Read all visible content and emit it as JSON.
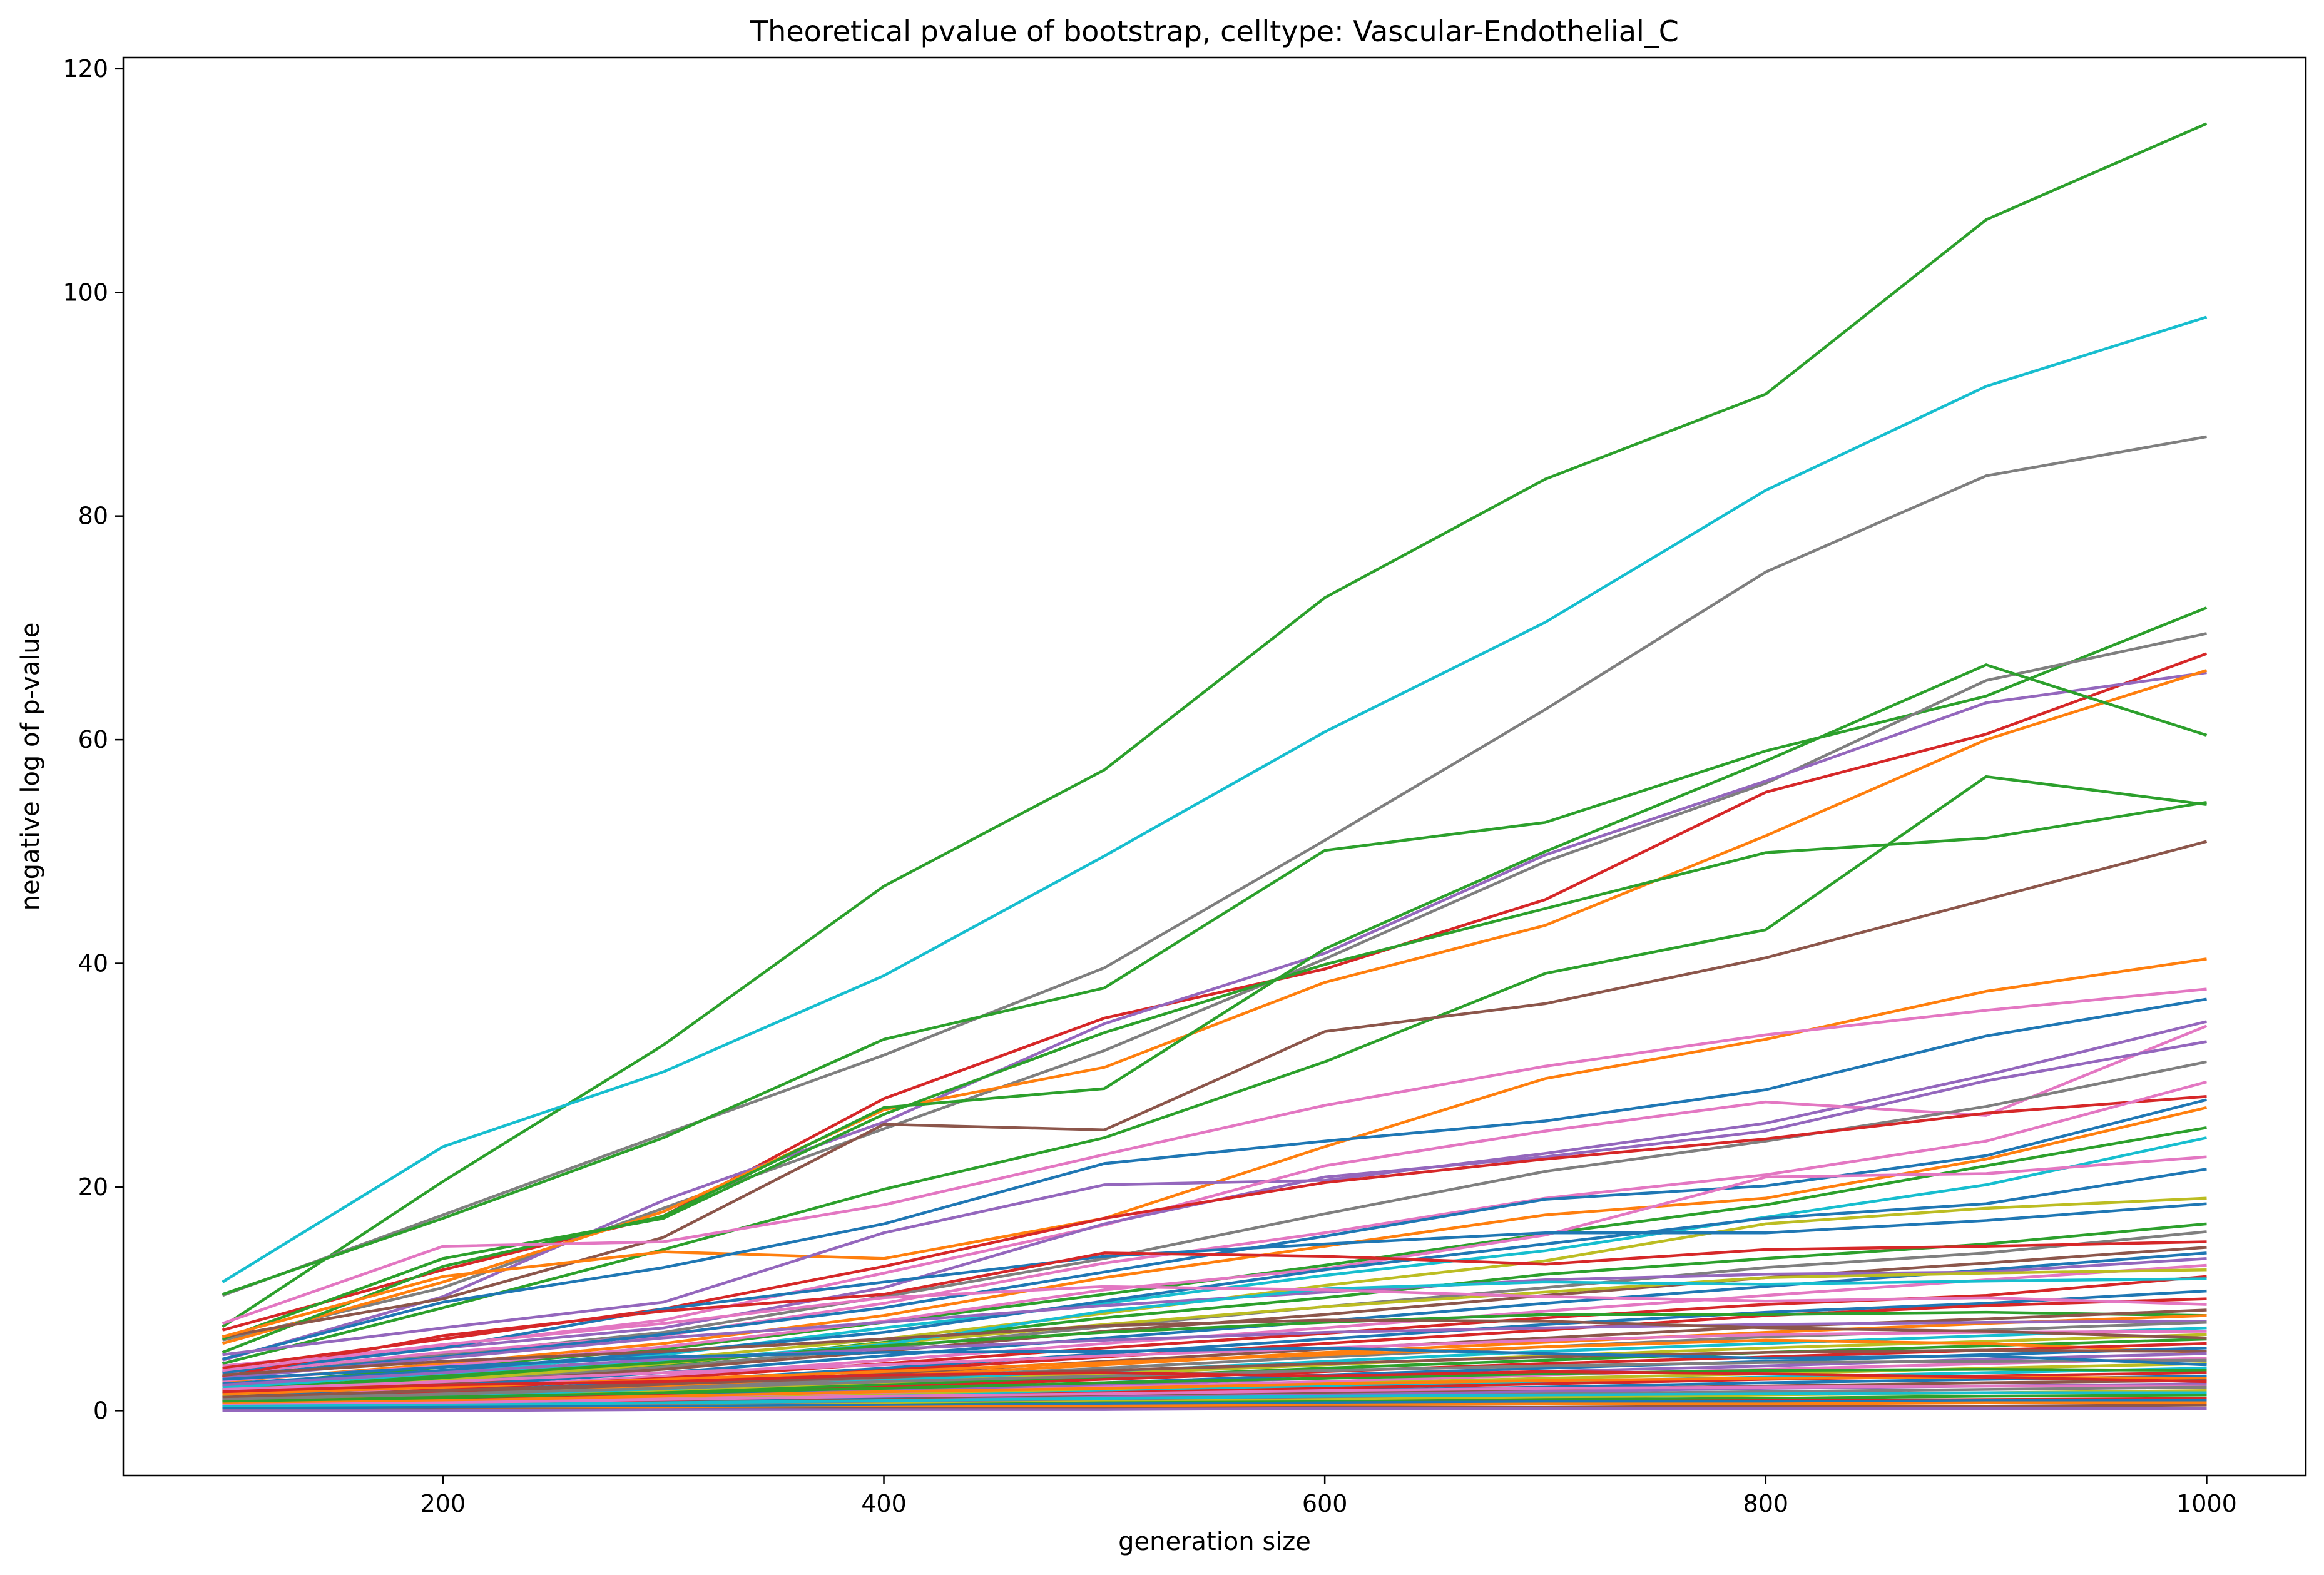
{
  "chart_data": {
    "type": "line",
    "title": "Theoretical pvalue of bootstrap, celltype: Vascular-Endothelial_C",
    "xlabel": "generation size",
    "ylabel": "negative log of p-value",
    "xlim": [
      55,
      1045
    ],
    "ylim": [
      -5.8,
      121
    ],
    "x_ticks": [
      200,
      400,
      600,
      800,
      1000
    ],
    "y_ticks": [
      0,
      20,
      40,
      60,
      80,
      100,
      120
    ],
    "grid": false,
    "legend": "none",
    "colors": [
      "#1f77b4",
      "#ff7f0e",
      "#2ca02c",
      "#d62728",
      "#9467bd",
      "#8c564b",
      "#e377c2",
      "#7f7f7f",
      "#bcbd22",
      "#17becf"
    ],
    "x": [
      100,
      200,
      300,
      400,
      500,
      600,
      700,
      800,
      900,
      1000
    ],
    "series": [
      {
        "color": "#2ca02c",
        "values": [
          7.5,
          20.5,
          32.7,
          46.9,
          57.3,
          72.7,
          83.3,
          90.9,
          106.5,
          115.1
        ]
      },
      {
        "color": "#17becf",
        "values": [
          11.5,
          23.6,
          30.3,
          38.9,
          49.6,
          60.7,
          70.5,
          82.3,
          91.6,
          97.8
        ]
      },
      {
        "color": "#7f7f7f",
        "values": [
          10.3,
          17.5,
          24.7,
          31.8,
          39.6,
          51.0,
          62.7,
          75.0,
          83.6,
          87.1
        ]
      },
      {
        "color": "#2ca02c",
        "values": [
          10.4,
          17.2,
          24.4,
          33.2,
          37.8,
          50.1,
          52.6,
          59.0,
          63.9,
          71.8
        ]
      },
      {
        "color": "#7f7f7f",
        "values": [
          6.3,
          11.0,
          18.1,
          25.2,
          32.2,
          40.4,
          49.1,
          56.1,
          65.3,
          69.5
        ]
      },
      {
        "color": "#d62728",
        "values": [
          7.2,
          12.6,
          17.4,
          27.9,
          35.1,
          39.5,
          45.7,
          55.3,
          60.5,
          67.7
        ]
      },
      {
        "color": "#9467bd",
        "values": [
          4.5,
          10.2,
          18.8,
          25.8,
          34.6,
          40.9,
          49.7,
          56.3,
          63.3,
          66.0
        ]
      },
      {
        "color": "#ff7f0e",
        "values": [
          6.0,
          11.5,
          17.8,
          26.9,
          30.7,
          38.3,
          43.4,
          51.4,
          60.0,
          66.2
        ]
      },
      {
        "color": "#2ca02c",
        "values": [
          5.2,
          12.9,
          17.4,
          27.1,
          28.8,
          41.3,
          50.0,
          58.1,
          66.7,
          60.4
        ]
      },
      {
        "color": "#2ca02c",
        "values": [
          4.2,
          9.2,
          14.4,
          19.8,
          24.4,
          31.2,
          39.1,
          43.0,
          56.7,
          54.2
        ]
      },
      {
        "color": "#2ca02c",
        "values": [
          6.4,
          13.6,
          17.2,
          26.5,
          33.8,
          39.9,
          44.9,
          49.9,
          51.2,
          54.4
        ]
      },
      {
        "color": "#8c564b",
        "values": [
          6.6,
          10.0,
          15.5,
          25.6,
          25.1,
          33.9,
          36.4,
          40.5,
          45.7,
          50.9
        ]
      },
      {
        "color": "#ff7f0e",
        "values": [
          6.6,
          12.0,
          14.2,
          13.6,
          17.2,
          23.6,
          29.7,
          33.2,
          37.5,
          40.4
        ]
      },
      {
        "color": "#e377c2",
        "values": [
          7.8,
          14.7,
          15.1,
          18.4,
          22.9,
          27.3,
          30.8,
          33.6,
          35.8,
          37.7
        ]
      },
      {
        "color": "#1f77b4",
        "values": [
          4.6,
          9.7,
          12.8,
          16.7,
          22.1,
          24.1,
          25.9,
          28.7,
          33.5,
          36.8
        ]
      },
      {
        "color": "#9467bd",
        "values": [
          5.0,
          7.4,
          9.7,
          15.9,
          20.2,
          20.6,
          23.0,
          25.7,
          30.0,
          34.8
        ]
      },
      {
        "color": "#e377c2",
        "values": [
          4.0,
          5.8,
          8.1,
          12.3,
          16.6,
          21.9,
          25.0,
          27.6,
          26.4,
          34.4
        ]
      },
      {
        "color": "#9467bd",
        "values": [
          3.5,
          5.6,
          7.4,
          11.0,
          16.7,
          20.9,
          22.7,
          25.0,
          29.5,
          33.0
        ]
      },
      {
        "color": "#7f7f7f",
        "values": [
          3.0,
          5.0,
          7.0,
          10.2,
          13.6,
          17.6,
          21.4,
          24.1,
          27.2,
          31.2
        ]
      },
      {
        "color": "#d62728",
        "values": [
          3.8,
          6.4,
          9.1,
          12.9,
          17.2,
          20.4,
          22.5,
          24.3,
          26.6,
          28.1
        ]
      },
      {
        "color": "#e377c2",
        "values": [
          3.3,
          5.2,
          6.7,
          9.6,
          13.2,
          15.9,
          19.0,
          21.1,
          24.1,
          29.4
        ]
      },
      {
        "color": "#1f77b4",
        "values": [
          3.1,
          4.8,
          6.8,
          9.2,
          12.4,
          15.6,
          18.9,
          20.1,
          22.8,
          27.8
        ]
      },
      {
        "color": "#ff7f0e",
        "values": [
          2.6,
          4.2,
          6.0,
          8.5,
          11.9,
          14.7,
          17.5,
          19.0,
          22.5,
          27.1
        ]
      },
      {
        "color": "#2ca02c",
        "values": [
          2.2,
          3.9,
          5.5,
          7.9,
          10.4,
          13.0,
          15.8,
          18.4,
          21.9,
          25.3
        ]
      },
      {
        "color": "#17becf",
        "values": [
          1.9,
          3.5,
          5.0,
          7.4,
          9.6,
          12.1,
          14.3,
          17.3,
          20.2,
          24.4
        ]
      },
      {
        "color": "#e377c2",
        "values": [
          2.7,
          4.0,
          5.7,
          8.0,
          10.8,
          12.7,
          15.7,
          20.9,
          21.2,
          22.7
        ]
      },
      {
        "color": "#1f77b4",
        "values": [
          2.4,
          3.6,
          5.2,
          7.0,
          9.8,
          12.6,
          14.9,
          17.2,
          18.5,
          21.6
        ]
      },
      {
        "color": "#bcbd22",
        "values": [
          1.6,
          3.0,
          4.6,
          6.4,
          8.7,
          11.2,
          13.4,
          16.7,
          18.1,
          19.0
        ]
      },
      {
        "color": "#1f77b4",
        "values": [
          3.4,
          5.6,
          9.1,
          11.5,
          13.8,
          14.9,
          15.9,
          15.9,
          17.0,
          18.5
        ]
      },
      {
        "color": "#2ca02c",
        "values": [
          1.5,
          2.9,
          4.1,
          6.1,
          8.3,
          10.1,
          12.2,
          13.6,
          14.9,
          16.7
        ]
      },
      {
        "color": "#7f7f7f",
        "values": [
          1.3,
          2.6,
          3.9,
          5.6,
          7.5,
          9.3,
          11.0,
          12.8,
          14.1,
          16.0
        ]
      },
      {
        "color": "#d62728",
        "values": [
          3.0,
          6.7,
          8.9,
          10.4,
          14.1,
          13.8,
          13.1,
          14.4,
          14.7,
          15.1
        ]
      },
      {
        "color": "#8c564b",
        "values": [
          1.2,
          2.4,
          3.7,
          5.3,
          7.1,
          8.6,
          10.3,
          11.9,
          13.2,
          14.6
        ]
      },
      {
        "color": "#1f77b4",
        "values": [
          1.1,
          2.2,
          3.4,
          4.9,
          6.5,
          8.0,
          9.6,
          11.1,
          12.6,
          14.1
        ]
      },
      {
        "color": "#9467bd",
        "values": [
          2.9,
          4.7,
          6.5,
          7.9,
          9.4,
          10.6,
          11.7,
          12.2,
          12.4,
          13.6
        ]
      },
      {
        "color": "#e377c2",
        "values": [
          1.0,
          2.0,
          3.1,
          4.5,
          6.0,
          7.4,
          8.9,
          10.3,
          11.7,
          13.0
        ]
      },
      {
        "color": "#bcbd22",
        "values": [
          1.4,
          2.7,
          4.2,
          6.0,
          7.7,
          9.3,
          10.6,
          11.9,
          12.3,
          12.6
        ]
      },
      {
        "color": "#d62728",
        "values": [
          0.9,
          1.9,
          2.9,
          4.2,
          5.6,
          6.9,
          8.3,
          9.5,
          10.3,
          12.0
        ]
      },
      {
        "color": "#17becf",
        "values": [
          2.1,
          3.3,
          4.4,
          5.9,
          8.9,
          10.9,
          11.5,
          11.3,
          11.6,
          11.8
        ]
      },
      {
        "color": "#1f77b4",
        "values": [
          0.8,
          1.7,
          2.6,
          3.8,
          5.1,
          6.4,
          7.7,
          8.8,
          9.6,
          10.7
        ]
      },
      {
        "color": "#d62728",
        "values": [
          0.8,
          1.6,
          2.5,
          3.6,
          4.8,
          6.0,
          7.2,
          8.5,
          9.4,
          10.0
        ]
      },
      {
        "color": "#2ca02c",
        "values": [
          1.8,
          3.1,
          4.3,
          5.8,
          7.0,
          7.9,
          8.6,
          8.6,
          8.8,
          8.5
        ]
      },
      {
        "color": "#8c564b",
        "values": [
          0.7,
          1.5,
          2.3,
          3.3,
          4.4,
          5.5,
          6.5,
          7.5,
          8.2,
          9.0
        ]
      },
      {
        "color": "#ff7f0e",
        "values": [
          0.7,
          1.4,
          2.1,
          3.1,
          4.1,
          5.2,
          6.1,
          7.0,
          7.8,
          8.5
        ]
      },
      {
        "color": "#9467bd",
        "values": [
          2.3,
          3.4,
          4.6,
          5.5,
          6.3,
          7.0,
          7.4,
          7.7,
          7.9,
          8.0
        ]
      },
      {
        "color": "#7f7f7f",
        "values": [
          0.6,
          1.3,
          2.0,
          2.9,
          3.8,
          4.8,
          5.7,
          6.6,
          7.2,
          7.9
        ]
      },
      {
        "color": "#17becf",
        "values": [
          0.6,
          1.2,
          1.8,
          2.7,
          3.5,
          4.4,
          5.3,
          6.0,
          6.7,
          7.4
        ]
      },
      {
        "color": "#e377c2",
        "values": [
          1.9,
          2.6,
          3.4,
          4.1,
          4.9,
          5.6,
          6.3,
          6.8,
          7.0,
          7.1
        ]
      },
      {
        "color": "#bcbd22",
        "values": [
          0.5,
          1.1,
          1.7,
          2.5,
          3.3,
          4.1,
          4.9,
          5.6,
          6.2,
          6.8
        ]
      },
      {
        "color": "#2ca02c",
        "values": [
          0.5,
          1.0,
          1.6,
          2.3,
          3.0,
          3.8,
          4.5,
          5.2,
          5.8,
          6.4
        ]
      },
      {
        "color": "#ff7f0e",
        "values": [
          1.5,
          2.1,
          2.8,
          3.5,
          4.3,
          5.0,
          5.7,
          6.3,
          6.0,
          5.2
        ]
      },
      {
        "color": "#d62728",
        "values": [
          0.4,
          0.9,
          1.4,
          2.1,
          2.8,
          3.5,
          4.2,
          4.8,
          5.4,
          6.0
        ]
      },
      {
        "color": "#1f77b4",
        "values": [
          0.4,
          0.9,
          1.3,
          1.9,
          2.5,
          3.2,
          3.8,
          4.4,
          5.0,
          5.6
        ]
      },
      {
        "color": "#8c564b",
        "values": [
          1.2,
          1.8,
          2.4,
          3.0,
          3.6,
          4.2,
          4.8,
          5.2,
          5.4,
          5.3
        ]
      },
      {
        "color": "#9467bd",
        "values": [
          0.4,
          0.8,
          1.2,
          1.8,
          2.3,
          2.9,
          3.5,
          4.0,
          4.6,
          5.1
        ]
      },
      {
        "color": "#e377c2",
        "values": [
          0.3,
          0.7,
          1.1,
          1.6,
          2.1,
          2.6,
          3.2,
          3.7,
          4.2,
          4.7
        ]
      },
      {
        "color": "#7f7f7f",
        "values": [
          1.0,
          1.5,
          2.0,
          2.6,
          3.1,
          3.6,
          4.0,
          4.3,
          4.4,
          4.5
        ]
      },
      {
        "color": "#bcbd22",
        "values": [
          0.3,
          0.6,
          1.0,
          1.4,
          1.9,
          2.4,
          2.9,
          3.3,
          3.8,
          4.2
        ]
      },
      {
        "color": "#17becf",
        "values": [
          0.3,
          0.6,
          0.9,
          1.3,
          1.7,
          2.2,
          2.6,
          3.0,
          3.4,
          3.8
        ]
      },
      {
        "color": "#2ca02c",
        "values": [
          0.8,
          1.2,
          1.6,
          2.0,
          2.5,
          2.9,
          3.3,
          3.6,
          3.7,
          3.6
        ]
      },
      {
        "color": "#d62728",
        "values": [
          0.2,
          0.5,
          0.8,
          1.2,
          1.6,
          2.0,
          2.4,
          2.8,
          3.1,
          3.4
        ]
      },
      {
        "color": "#1f77b4",
        "values": [
          0.2,
          0.5,
          0.7,
          1.1,
          1.4,
          1.8,
          2.1,
          2.5,
          2.8,
          3.1
        ]
      },
      {
        "color": "#ff7f0e",
        "values": [
          0.6,
          0.9,
          1.3,
          1.7,
          2.0,
          2.4,
          2.7,
          2.9,
          3.0,
          2.9
        ]
      },
      {
        "color": "#8c564b",
        "values": [
          0.2,
          0.4,
          0.7,
          1.0,
          1.3,
          1.6,
          1.9,
          2.2,
          2.5,
          2.7
        ]
      },
      {
        "color": "#9467bd",
        "values": [
          0.2,
          0.4,
          0.6,
          0.9,
          1.2,
          1.4,
          1.7,
          2.0,
          2.2,
          2.4
        ]
      },
      {
        "color": "#e377c2",
        "values": [
          0.5,
          0.7,
          1.0,
          1.3,
          1.5,
          1.8,
          2.0,
          2.1,
          2.2,
          2.2
        ]
      },
      {
        "color": "#7f7f7f",
        "values": [
          0.1,
          0.3,
          0.5,
          0.7,
          1.0,
          1.2,
          1.5,
          1.7,
          1.9,
          2.1
        ]
      },
      {
        "color": "#bcbd22",
        "values": [
          0.1,
          0.3,
          0.4,
          0.6,
          0.8,
          1.0,
          1.2,
          1.4,
          1.6,
          1.8
        ]
      },
      {
        "color": "#17becf",
        "values": [
          0.4,
          0.5,
          0.7,
          0.9,
          1.1,
          1.3,
          1.4,
          1.5,
          1.6,
          1.6
        ]
      },
      {
        "color": "#2ca02c",
        "values": [
          0.1,
          0.2,
          0.3,
          0.5,
          0.7,
          0.8,
          1.0,
          1.1,
          1.3,
          1.4
        ]
      },
      {
        "color": "#d62728",
        "values": [
          0.1,
          0.2,
          0.3,
          0.4,
          0.5,
          0.7,
          0.8,
          0.9,
          1.0,
          1.1
        ]
      },
      {
        "color": "#1f77b4",
        "values": [
          0.2,
          0.3,
          0.4,
          0.5,
          0.6,
          0.7,
          0.8,
          0.8,
          0.9,
          0.9
        ]
      },
      {
        "color": "#ff7f0e",
        "values": [
          0.0,
          0.1,
          0.2,
          0.3,
          0.4,
          0.5,
          0.6,
          0.6,
          0.7,
          0.7
        ]
      },
      {
        "color": "#8c564b",
        "values": [
          0.0,
          0.1,
          0.1,
          0.2,
          0.2,
          0.3,
          0.3,
          0.4,
          0.4,
          0.5
        ]
      },
      {
        "color": "#9467bd",
        "values": [
          0.0,
          0.0,
          0.1,
          0.1,
          0.1,
          0.2,
          0.2,
          0.2,
          0.2,
          0.2
        ]
      },
      {
        "color": "#e377c2",
        "values": [
          3.6,
          5.9,
          7.8,
          10.1,
          11.1,
          10.8,
          10.2,
          9.8,
          10.1,
          9.5
        ]
      },
      {
        "color": "#8c564b",
        "values": [
          3.2,
          4.4,
          5.3,
          6.4,
          7.6,
          8.1,
          8.0,
          7.4,
          7.1,
          6.5
        ]
      },
      {
        "color": "#1f77b4",
        "values": [
          2.8,
          3.9,
          4.8,
          5.2,
          5.3,
          5.6,
          5.1,
          4.7,
          4.9,
          4.1
        ]
      },
      {
        "color": "#d62728",
        "values": [
          1.7,
          2.3,
          2.6,
          3.2,
          3.4,
          3.1,
          3.5,
          3.3,
          3.0,
          2.6
        ]
      }
    ]
  }
}
